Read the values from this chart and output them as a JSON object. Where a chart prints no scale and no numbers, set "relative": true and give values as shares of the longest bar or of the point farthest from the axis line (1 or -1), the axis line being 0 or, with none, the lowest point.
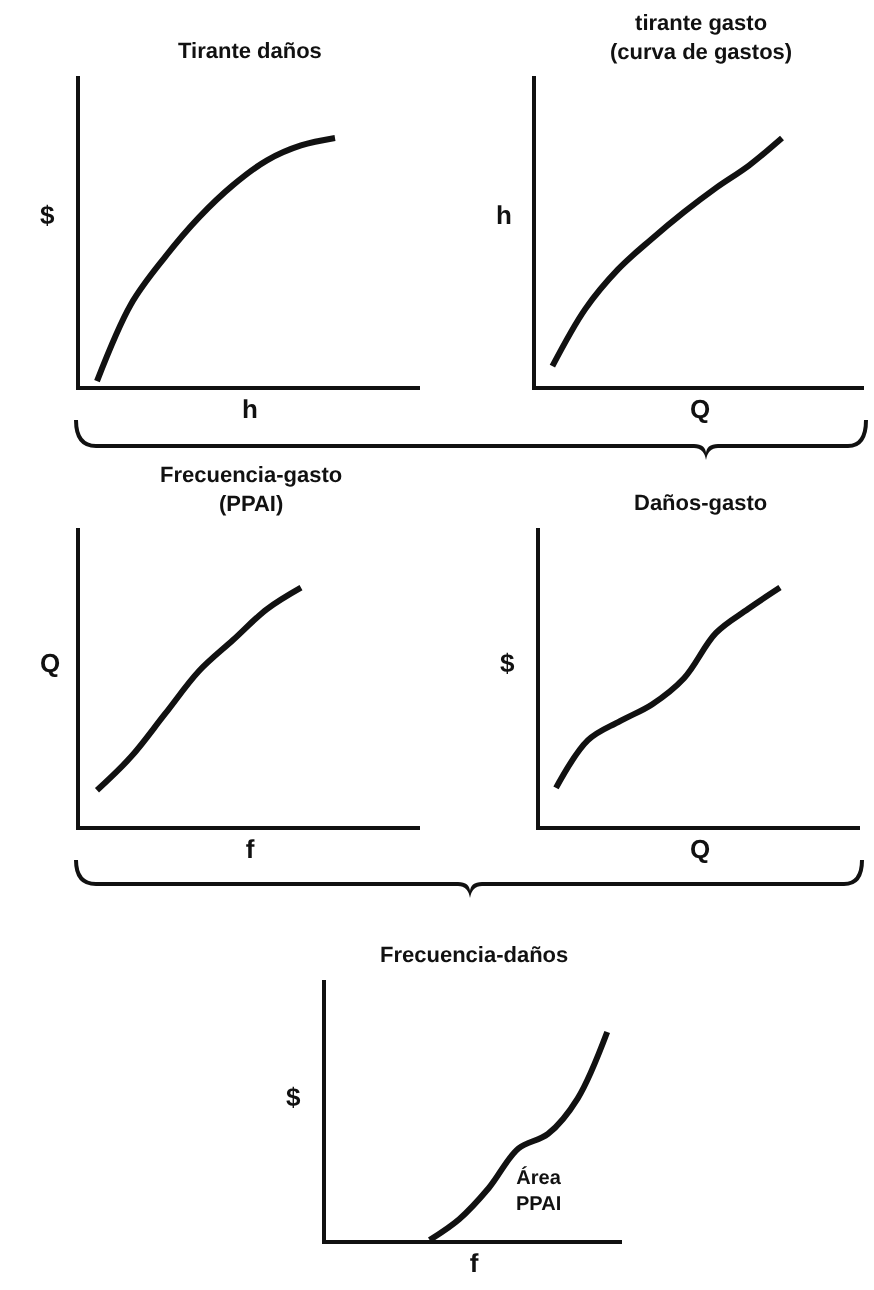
{
  "chart_data": [
    {
      "type": "line",
      "title": "Tirante daños",
      "xlabel": "h",
      "ylabel": "$",
      "relative": true,
      "tick_labels": false,
      "grid": false,
      "legend": false,
      "color": "#111111",
      "categories": [
        null,
        null,
        null,
        null,
        null,
        null,
        null,
        null,
        null,
        null
      ],
      "values": [
        0.02,
        0.33,
        0.52,
        0.68,
        0.81,
        0.91,
        0.97,
        1,
        null,
        null
      ]
    },
    {
      "type": "line",
      "title": "tirante gasto\n(curva de gastos)",
      "xlabel": "Q",
      "ylabel": "h",
      "relative": true,
      "tick_labels": false,
      "grid": false,
      "legend": false,
      "color": "#111111",
      "categories": [
        null,
        null,
        null,
        null,
        null,
        null,
        null,
        null,
        null,
        null
      ],
      "values": [
        0.08,
        0.31,
        0.47,
        0.59,
        0.7,
        0.8,
        0.89,
        1,
        null,
        null
      ]
    },
    {
      "type": "line",
      "title": "Frecuencia-gasto\n(PPAI)",
      "xlabel": "f",
      "ylabel": "Q",
      "relative": true,
      "tick_labels": false,
      "grid": false,
      "legend": false,
      "color": "#111111",
      "categories": [
        null,
        null,
        null,
        null,
        null,
        null,
        null,
        null,
        null,
        null
      ],
      "values": [
        0.15,
        0.29,
        0.47,
        0.65,
        0.78,
        0.91,
        1,
        null,
        null,
        null
      ]
    },
    {
      "type": "line",
      "title": "Daños-gasto",
      "xlabel": "Q",
      "ylabel": "$",
      "relative": true,
      "tick_labels": false,
      "grid": false,
      "legend": false,
      "color": "#111111",
      "categories": [
        null,
        null,
        null,
        null,
        null,
        null,
        null,
        null,
        null,
        null
      ],
      "values": [
        0.16,
        0.36,
        0.44,
        0.51,
        0.62,
        0.81,
        0.91,
        1,
        null,
        null
      ]
    },
    {
      "type": "line",
      "title": "Frecuencia-daños",
      "xlabel": "f",
      "ylabel": "$",
      "relative": true,
      "tick_labels": false,
      "grid": false,
      "legend": false,
      "color": "#111111",
      "annotations": [
        "Área\nPPAI"
      ],
      "categories": [
        null,
        null,
        null,
        null,
        null,
        null,
        null,
        null,
        null,
        null
      ],
      "values": [
        null,
        null,
        null,
        0,
        0.1,
        0.25,
        0.44,
        0.51,
        0.68,
        1
      ]
    }
  ]
}
